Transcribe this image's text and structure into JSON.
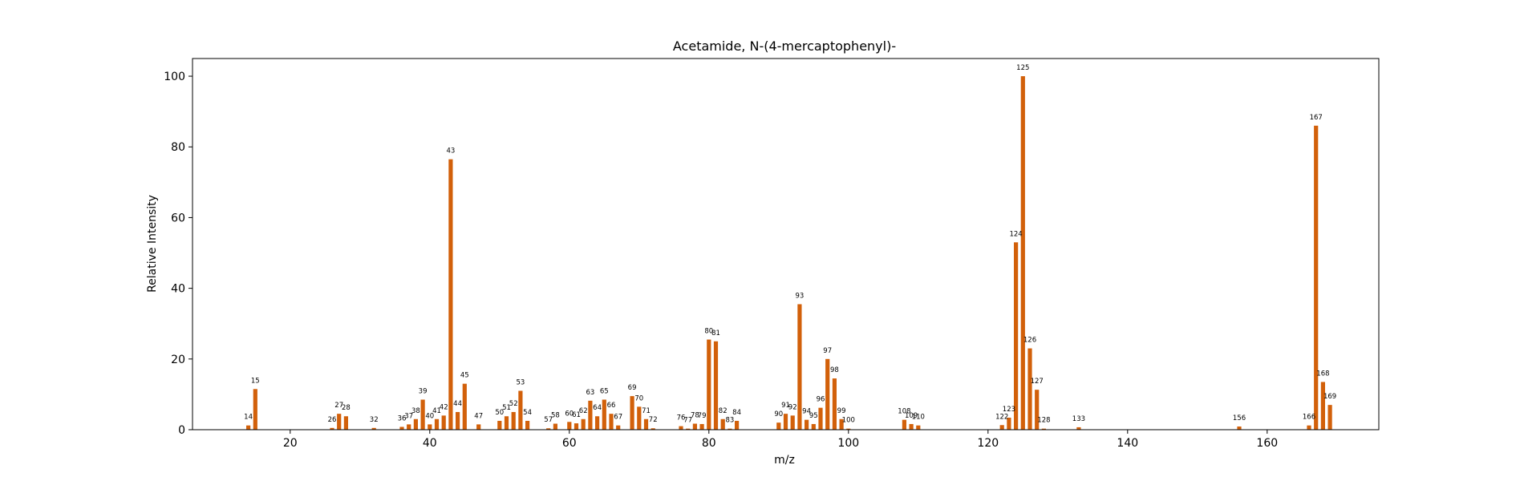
{
  "chart_data": {
    "type": "bar",
    "title": "Acetamide, N-(4-mercaptophenyl)-",
    "xlabel": "m/z",
    "ylabel": "Relative Intensity",
    "xlim": [
      6,
      176
    ],
    "ylim": [
      0,
      105
    ],
    "xticks": [
      20,
      40,
      60,
      80,
      100,
      120,
      140,
      160
    ],
    "yticks": [
      0,
      20,
      40,
      60,
      80,
      100
    ],
    "grid": false,
    "bar_color": "#d2600a",
    "series": [
      {
        "x": [
          14,
          15,
          26,
          27,
          28,
          32,
          36,
          37,
          38,
          39,
          40,
          41,
          42,
          43,
          44,
          45,
          47,
          50,
          51,
          52,
          53,
          54,
          57,
          58,
          60,
          61,
          62,
          63,
          64,
          65,
          66,
          67,
          69,
          70,
          71,
          72,
          76,
          77,
          78,
          79,
          80,
          81,
          82,
          83,
          84,
          90,
          91,
          92,
          93,
          94,
          95,
          96,
          97,
          98,
          99,
          100,
          108,
          109,
          110,
          122,
          123,
          124,
          125,
          126,
          127,
          128,
          133,
          156,
          166,
          167,
          168,
          169
        ],
        "y": [
          1.2,
          11.5,
          0.5,
          4.5,
          3.8,
          0.5,
          0.8,
          1.5,
          3.0,
          8.5,
          1.5,
          3.0,
          4.0,
          76.5,
          5.0,
          13.0,
          1.5,
          2.5,
          3.8,
          5.0,
          11.0,
          2.5,
          0.4,
          1.7,
          2.2,
          1.8,
          3.0,
          8.2,
          3.8,
          8.5,
          4.5,
          1.2,
          9.5,
          6.5,
          3.0,
          0.4,
          1.0,
          0.3,
          1.7,
          1.6,
          25.5,
          25.0,
          3.0,
          0.3,
          2.5,
          2.0,
          4.5,
          4.0,
          35.5,
          2.8,
          1.6,
          6.2,
          20.0,
          14.5,
          3.0,
          0.3,
          2.8,
          1.6,
          1.2,
          1.3,
          3.4,
          53.0,
          100.0,
          23.0,
          11.3,
          0.3,
          0.7,
          0.9,
          1.2,
          86.0,
          13.5,
          7.0
        ]
      }
    ],
    "labels": [
      "14",
      "15",
      "26",
      "27",
      "28",
      "32",
      "36",
      "37",
      "38",
      "39",
      "40",
      "41",
      "42",
      "43",
      "44",
      "45",
      "47",
      "50",
      "51",
      "52",
      "53",
      "54",
      "57",
      "58",
      "60",
      "61",
      "62",
      "63",
      "64",
      "65",
      "66",
      "67",
      "69",
      "70",
      "71",
      "72",
      "76",
      "77",
      "78",
      "79",
      "80",
      "81",
      "82",
      "83",
      "84",
      "90",
      "91",
      "92",
      "93",
      "94",
      "95",
      "96",
      "97",
      "98",
      "99",
      "100",
      "108",
      "109",
      "110",
      "122",
      "123",
      "124",
      "125",
      "126",
      "127",
      "128",
      "133",
      "156",
      "166",
      "167",
      "168",
      "169"
    ]
  }
}
